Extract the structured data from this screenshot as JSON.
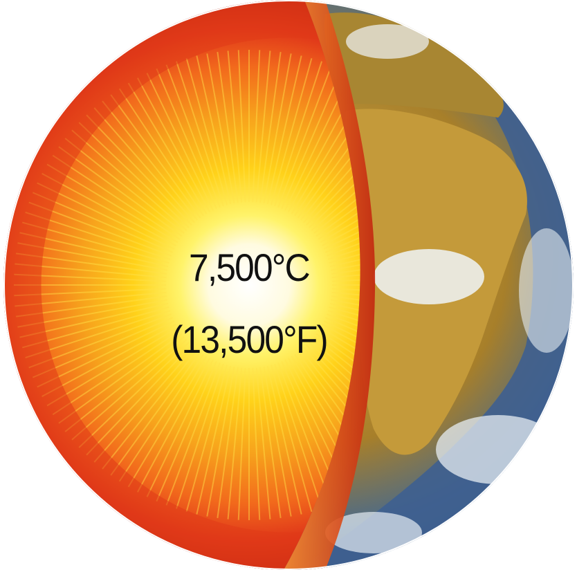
{
  "labels": {
    "temperature_celsius": "7,500°C",
    "temperature_fahrenheit": "(13,500°F)"
  },
  "colors": {
    "crust": "#e0381a",
    "mantle_outer": "#f26a1c",
    "mantle_inner": "#f7a21c",
    "core_glow": "#fff8d0",
    "ocean": "#3a5b8c",
    "land": "#b8902e",
    "cloud": "#e8eef2",
    "background": "#ffffff"
  },
  "icons": [
    "earth-cutaway-illustration"
  ]
}
